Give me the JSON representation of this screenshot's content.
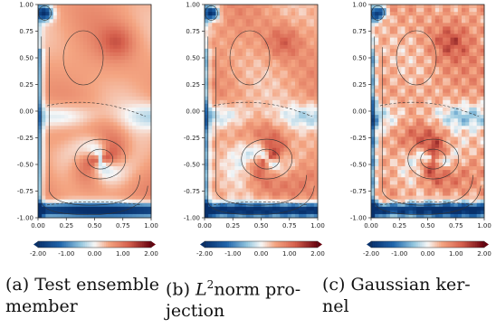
{
  "figure": {
    "panels": [
      {
        "caption_tag": "(a)",
        "caption_line1": "Test ensemble",
        "caption_line2": "member",
        "caption_math": ""
      },
      {
        "caption_tag": "(b)",
        "caption_math": "L",
        "caption_sup": "2",
        "caption_line1": "norm pro-",
        "caption_line2": "jection"
      },
      {
        "caption_tag": "(c)",
        "caption_line1": "Gaussian ker-",
        "caption_line2": "nel",
        "caption_math": ""
      }
    ],
    "colormap": {
      "low": "#08306b",
      "mid": "#f7f7f7",
      "high": "#67000d"
    }
  },
  "chart_data": [
    {
      "type": "heatmap",
      "title": "",
      "xlim": [
        0.0,
        1.0
      ],
      "ylim": [
        -1.0,
        1.0
      ],
      "x_ticks": [
        "0.00",
        "0.25",
        "0.50",
        "0.75",
        "1.00"
      ],
      "y_ticks": [
        "1.00",
        "0.75",
        "0.50",
        "0.25",
        "0.00",
        "-0.25",
        "-0.50",
        "-0.75",
        "-1.00"
      ],
      "colorbar_ticks": [
        "-2.00",
        "-1.00",
        "0.00",
        "1.00",
        "2.00"
      ],
      "colorbar_range": [
        -2.0,
        2.0
      ],
      "contours": true
    },
    {
      "type": "heatmap",
      "title": "",
      "xlim": [
        0.0,
        1.0
      ],
      "ylim": [
        -1.0,
        1.0
      ],
      "x_ticks": [
        "0.00",
        "0.25",
        "0.50",
        "0.75",
        "1.00"
      ],
      "y_ticks": [
        "1.00",
        "0.75",
        "0.50",
        "0.25",
        "0.00",
        "-0.25",
        "-0.50",
        "-0.75",
        "-1.00"
      ],
      "colorbar_ticks": [
        "-2.00",
        "-1.00",
        "0.00",
        "1.00",
        "2.00"
      ],
      "colorbar_range": [
        -2.0,
        2.0
      ],
      "contours": true
    },
    {
      "type": "heatmap",
      "title": "",
      "xlim": [
        0.0,
        1.0
      ],
      "ylim": [
        -1.0,
        1.0
      ],
      "x_ticks": [
        "0.00",
        "0.25",
        "0.50",
        "0.75",
        "1.00"
      ],
      "y_ticks": [
        "1.00",
        "0.75",
        "0.50",
        "0.25",
        "0.00",
        "-0.25",
        "-0.50",
        "-0.75",
        "-1.00"
      ],
      "colorbar_ticks": [
        "-2.00",
        "-1.00",
        "0.00",
        "1.00",
        "2.00"
      ],
      "colorbar_range": [
        -2.0,
        2.0
      ],
      "contours": true
    }
  ]
}
